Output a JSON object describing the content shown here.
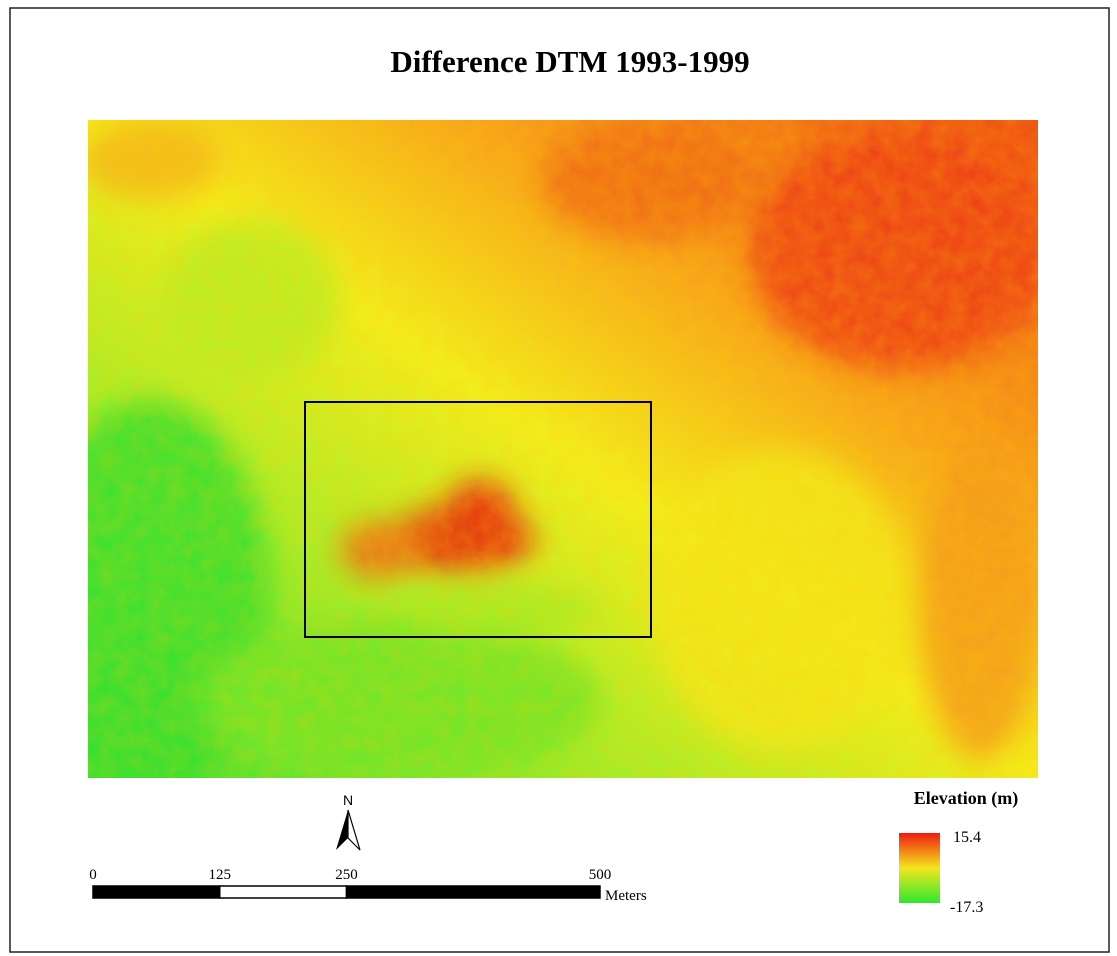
{
  "title": "Difference DTM 1993-1999",
  "north_arrow": "N",
  "scale_bar": {
    "ticks": [
      0,
      125,
      250,
      500
    ],
    "unit": "Meters"
  },
  "legend": {
    "title": "Elevation (m)",
    "max": "15.4",
    "min": "-17.3"
  }
}
